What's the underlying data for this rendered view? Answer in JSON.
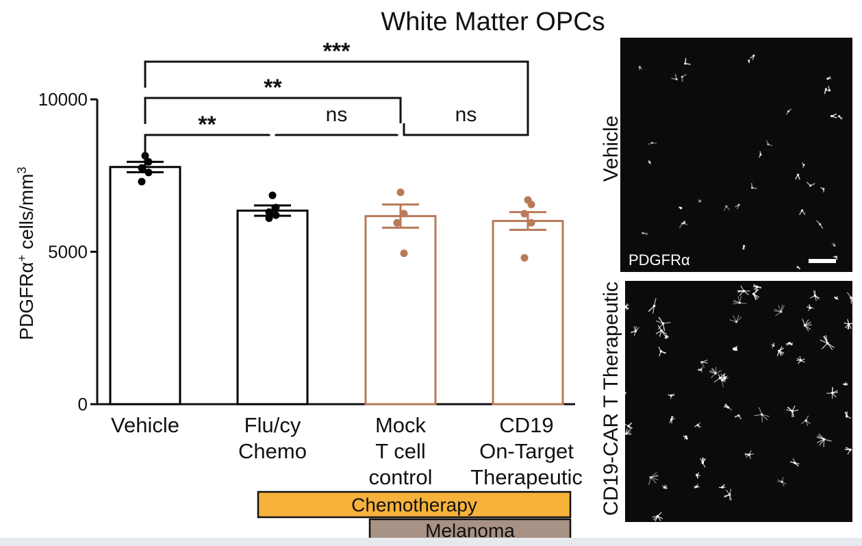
{
  "figure_title": "White Matter OPCs",
  "chart_data": {
    "type": "bar",
    "ylabel": "PDGFRα⁺ cells/mm³",
    "ylim": [
      0,
      10000
    ],
    "yticks": [
      0,
      5000,
      10000
    ],
    "categories": [
      "Vehicle",
      "Flu/cy Chemo",
      "Mock T cell control",
      "CD19 On-Target Therapeutic"
    ],
    "category_lines": [
      [
        "Vehicle"
      ],
      [
        "Flu/cy",
        "Chemo"
      ],
      [
        "Mock",
        "T cell",
        "control"
      ],
      [
        "CD19",
        "On-Target",
        "Therapeutic"
      ]
    ],
    "values": [
      7780,
      6350,
      6170,
      6010
    ],
    "sem": [
      170,
      170,
      380,
      290
    ],
    "bar_colors": [
      "#000000",
      "#000000",
      "#b87a58",
      "#b87a58"
    ],
    "points": [
      [
        8150,
        7950,
        7750,
        7600,
        7300
      ],
      [
        6850,
        6450,
        6300,
        6200,
        6100
      ],
      [
        6950,
        6250,
        5950,
        4950
      ],
      [
        6700,
        6550,
        6250,
        5950,
        4800
      ]
    ],
    "comparisons": [
      {
        "from": 0,
        "to": 1,
        "label": "**"
      },
      {
        "from": 1,
        "to": 2,
        "label": "ns"
      },
      {
        "from": 2,
        "to": 3,
        "label": "ns"
      },
      {
        "from": 0,
        "to": 2,
        "label": "**"
      },
      {
        "from": 0,
        "to": 3,
        "label": "***"
      }
    ],
    "condition_bars": [
      {
        "label": "Chemotherapy",
        "from": 1,
        "to": 3,
        "color": "#f7b23b"
      },
      {
        "label": "Melanoma",
        "from": 2,
        "to": 3,
        "color": "#a89286"
      }
    ]
  },
  "micrographs": {
    "top": {
      "row_label": "Vehicle",
      "stain_label": "PDGFRα"
    },
    "bottom": {
      "row_label": "CD19-CAR T Therapeutic"
    }
  }
}
